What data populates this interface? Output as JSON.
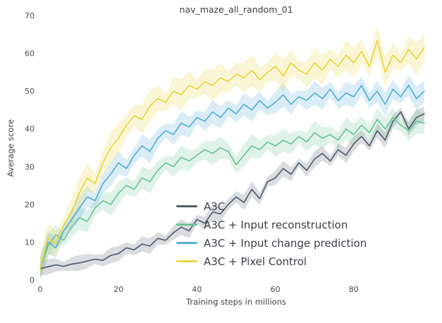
{
  "chart_data": {
    "type": "line",
    "title": "nav_maze_all_random_01",
    "xlabel": "Training steps in millions",
    "ylabel": "Average score",
    "xlim": [
      0,
      100
    ],
    "ylim": [
      0,
      70
    ],
    "xticks": [
      0,
      20,
      40,
      60,
      80
    ],
    "yticks": [
      0,
      10,
      20,
      30,
      40,
      50,
      60,
      70
    ],
    "grid": false,
    "legend_position": "inside lower right",
    "x": [
      0,
      2,
      4,
      6,
      8,
      10,
      12,
      14,
      16,
      18,
      20,
      22,
      24,
      26,
      28,
      30,
      32,
      34,
      36,
      38,
      40,
      42,
      44,
      46,
      48,
      50,
      52,
      54,
      56,
      58,
      60,
      62,
      64,
      66,
      68,
      70,
      72,
      74,
      76,
      78,
      80,
      82,
      84,
      86,
      88,
      90,
      92,
      94,
      96,
      98
    ],
    "series": [
      {
        "name": "A3C",
        "color": "#555f6e",
        "band": 2,
        "values": [
          3,
          3.5,
          4,
          3.6,
          4.2,
          4.5,
          5,
          5.5,
          5.2,
          6.5,
          7,
          8.5,
          8,
          9.5,
          9,
          11,
          10.5,
          12.5,
          14,
          13,
          16,
          15,
          18,
          17.5,
          20,
          22,
          20.5,
          24,
          21.5,
          26,
          27,
          29.5,
          28,
          31,
          29,
          32,
          33.5,
          31.5,
          34.5,
          33,
          36,
          38,
          35.5,
          39.5,
          37,
          42,
          44.5,
          40,
          43,
          44
        ]
      },
      {
        "name": "A3C + Input reconstruction",
        "color": "#6ec49a",
        "band": 3,
        "values": [
          3,
          9,
          12,
          10.5,
          14,
          16.5,
          15.5,
          19,
          21,
          20,
          23,
          25,
          24,
          27,
          26,
          29,
          31,
          30,
          32.5,
          31.5,
          33,
          34.5,
          33.5,
          35,
          34,
          30.5,
          33,
          35.5,
          34.5,
          36.5,
          35.5,
          37,
          36,
          38,
          36.5,
          39,
          37.5,
          38.5,
          37,
          40,
          38.5,
          41,
          39,
          42.5,
          40,
          43,
          41,
          39.5,
          42,
          41.5
        ]
      },
      {
        "name": "A3C + Input change prediction",
        "color": "#58aed6",
        "band": 3,
        "values": [
          3,
          10,
          8.5,
          13,
          16,
          19,
          22,
          21,
          25.5,
          28,
          31,
          29.5,
          33,
          35.5,
          34,
          37.5,
          39.5,
          38.5,
          41.5,
          40.5,
          43,
          42,
          44.5,
          43,
          45.5,
          44,
          46.5,
          45,
          47.5,
          45.5,
          47,
          49,
          46.5,
          48.5,
          47.5,
          49.5,
          48,
          50.5,
          47.5,
          49.5,
          48.5,
          51.5,
          47.5,
          50,
          46.5,
          50.5,
          48.5,
          51.5,
          48,
          50
        ]
      },
      {
        "name": "A3C + Pixel Control",
        "color": "#e8d53f",
        "band": 4,
        "values": [
          3,
          11,
          9.5,
          14.5,
          18,
          23,
          27,
          25.5,
          31,
          35,
          37.5,
          41,
          43.5,
          42.5,
          46,
          48,
          47,
          50,
          49,
          51.5,
          50.5,
          52.5,
          51.5,
          53.5,
          52.5,
          54.5,
          53.5,
          55.5,
          53,
          55,
          56.5,
          54,
          57.5,
          55.5,
          54.5,
          57.5,
          55.5,
          58.5,
          56.5,
          59.5,
          57.5,
          60.5,
          56.5,
          63.5,
          55,
          59.5,
          57.5,
          61,
          58.5,
          61.5
        ]
      }
    ]
  }
}
